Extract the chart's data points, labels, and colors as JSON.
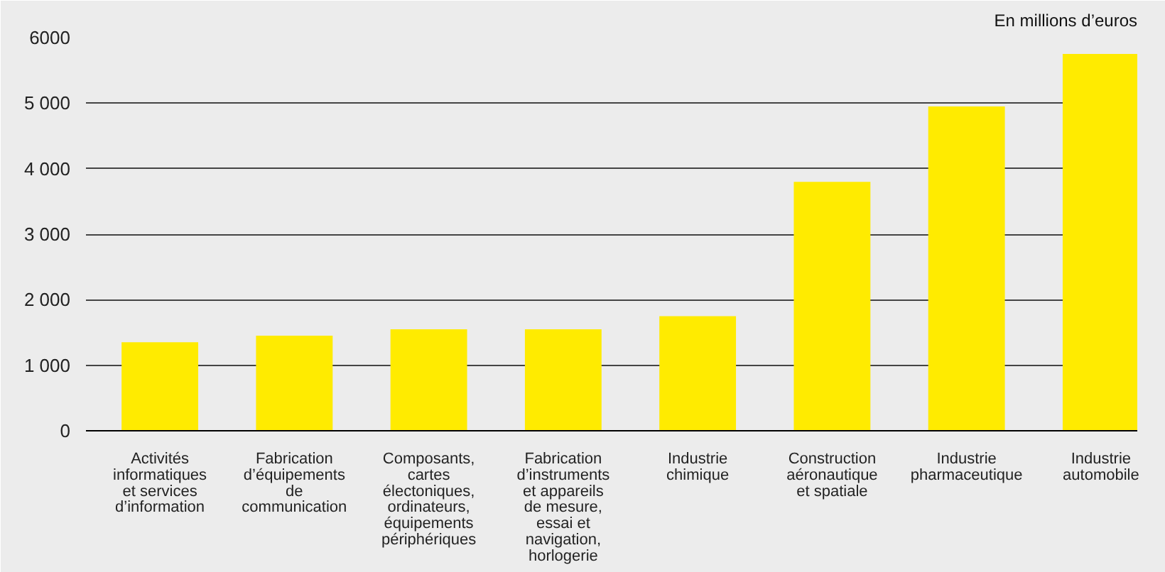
{
  "chart_data": {
    "type": "bar",
    "annotations": [
      "En millions d’euros"
    ],
    "categories": [
      "Activités\ninformatiques\net services\nd’information",
      "Fabrication\nd’équipements\nde\ncommunication",
      "Composants,\ncartes\nélectoniques,\nordinateurs,\néquipements\npériphériques",
      "Fabrication\nd’instruments\net appareils\nde mesure,\nessai et\nnavigation,\nhorlogerie",
      "Industrie\nchimique",
      "Construction\naéronautique\net spatiale",
      "Industrie\npharmaceutique",
      "Industrie\nautomobile"
    ],
    "values": [
      1350,
      1450,
      1550,
      1550,
      1750,
      3800,
      4950,
      5750
    ],
    "color": "#ffeb00",
    "ylim": [
      0,
      6000
    ],
    "yticks": [
      0,
      {
        "value": 1000,
        "label": "1 000"
      },
      {
        "value": 2000,
        "label": "2 000"
      },
      {
        "value": 3000,
        "label": "3 000"
      },
      {
        "value": 4000,
        "label": "4 000"
      },
      {
        "value": 5000,
        "label": "5 000"
      },
      6000
    ],
    "grid": "y"
  }
}
